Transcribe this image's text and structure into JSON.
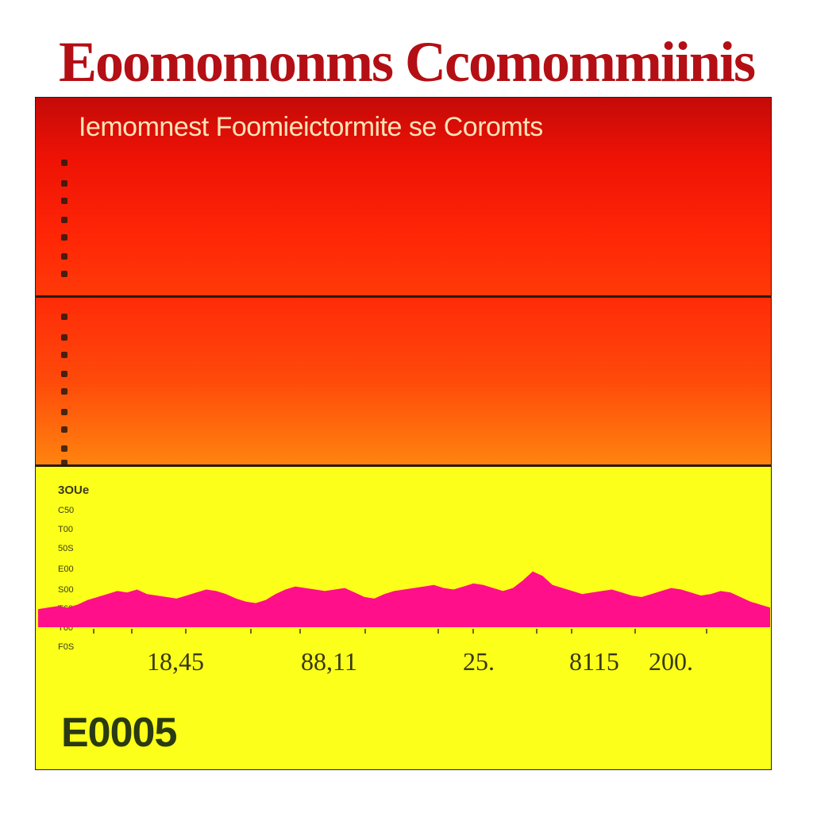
{
  "title": "Eoomomonms Ccomommiinis",
  "subtitle": "Iemomnest Foomieictormite se  Coromts",
  "footer_code": "E0005",
  "colors": {
    "title": "#b30f14",
    "band_top": "#e0100a",
    "band_mid": "#ff5a0c",
    "band_low": "#fbff1a",
    "area_fill": "#ff0f8a"
  },
  "chart_data": {
    "type": "area",
    "title": "Eoomomonms Ccomommiinis",
    "subtitle": "Iemomnest Foomieictormite se  Coromts",
    "y_tick_labels": [
      "3OUe",
      "C50",
      "T00",
      "50S",
      "E00",
      "S00",
      "T60",
      "T60",
      "F0S"
    ],
    "x_tick_labels": [
      "18,45",
      "88,11",
      "25.",
      "8115",
      "200."
    ],
    "ylim": [
      0,
      100
    ],
    "grid": false,
    "series": [
      {
        "values": [
          12,
          13,
          14,
          13,
          15,
          18,
          20,
          22,
          24,
          23,
          25,
          22,
          21,
          20,
          19,
          21,
          23,
          25,
          24,
          22,
          19,
          17,
          16,
          18,
          22,
          25,
          27,
          26,
          25,
          24,
          25,
          26,
          23,
          20,
          19,
          22,
          24,
          25,
          26,
          27,
          28,
          26,
          25,
          27,
          29,
          28,
          26,
          24,
          26,
          31,
          37,
          34,
          28,
          26,
          24,
          22,
          23,
          24,
          25,
          23,
          21,
          20,
          22,
          24,
          26,
          25,
          23,
          21,
          22,
          24,
          23,
          20,
          17,
          15,
          13
        ]
      }
    ]
  }
}
